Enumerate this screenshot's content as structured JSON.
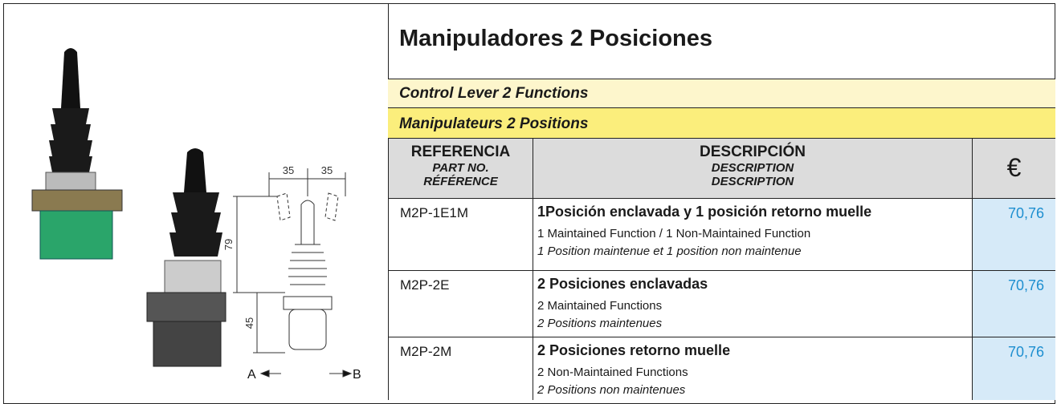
{
  "header": {
    "title": "Manipuladores 2 Posiciones"
  },
  "subtitles": [
    "Control Lever 2 Functions",
    "Manipulateurs 2 Positions"
  ],
  "table": {
    "columns": [
      {
        "es": "REFERENCIA",
        "en": "PART NO.",
        "fr": "RÉFÉRENCE"
      },
      {
        "es": "DESCRIPCIÓN",
        "en": "DESCRIPTION",
        "fr": "DESCRIPTION"
      },
      {
        "symbol": "€"
      }
    ],
    "rows": [
      {
        "ref": "M2P-1E1M",
        "es": "1Posición enclavada y 1 posición retorno muelle",
        "en": "1 Maintained Function / 1 Non-Maintained Function",
        "fr": "1 Position maintenue et 1 position non maintenue",
        "price": "70,76"
      },
      {
        "ref": "M2P-2E",
        "es": "2 Posiciones enclavadas",
        "en": "2 Maintained Functions",
        "fr": "2 Positions maintenues",
        "price": "70,76"
      },
      {
        "ref": "M2P-2M",
        "es": "2 Posiciones retorno muelle",
        "en": "2 Non-Maintained Functions",
        "fr": "2 Positions non maintenues",
        "price": "70,76"
      }
    ]
  },
  "drawing": {
    "labels": [
      "35",
      "35",
      "79",
      "45",
      "A",
      "B"
    ]
  }
}
